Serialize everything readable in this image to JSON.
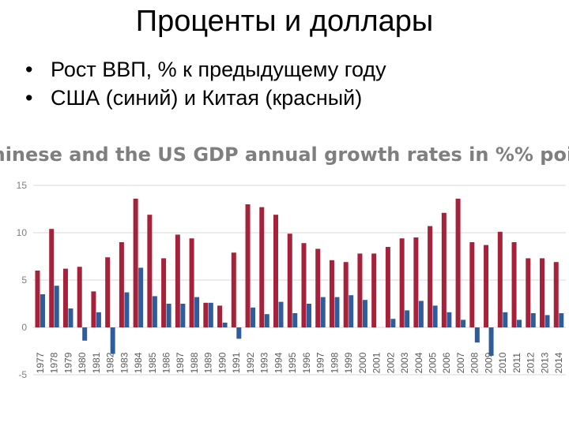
{
  "slide": {
    "title": "Проценты и доллары",
    "bullets": [
      "Рост ВВП, % к предыдущему году",
      "США (синий) и Китая (красный)"
    ]
  },
  "chart_data": {
    "type": "bar",
    "title": "Chinese and the US GDP annual growth rates in %% points",
    "xlabel": "",
    "ylabel": "",
    "ylim": [
      -5,
      15
    ],
    "yticks": [
      -5,
      0,
      5,
      10,
      15
    ],
    "grid": true,
    "legend": "none",
    "categories": [
      "1977",
      "1978",
      "1979",
      "1980",
      "1981",
      "1982",
      "1983",
      "1984",
      "1985",
      "1986",
      "1987",
      "1988",
      "1989",
      "1990",
      "1991",
      "1992",
      "1993",
      "1994",
      "1995",
      "1996",
      "1997",
      "1998",
      "1999",
      "2000",
      "2001",
      "2002",
      "2003",
      "2004",
      "2005",
      "2006",
      "2007",
      "2008",
      "2009",
      "2010",
      "2011",
      "2012",
      "2013",
      "2014"
    ],
    "series": [
      {
        "color": "#a6213a",
        "values": [
          6.0,
          10.4,
          6.2,
          6.4,
          3.8,
          7.4,
          9.0,
          13.6,
          11.9,
          7.3,
          9.8,
          9.4,
          2.6,
          2.3,
          7.9,
          13.0,
          12.7,
          11.9,
          9.9,
          8.9,
          8.3,
          7.1,
          6.9,
          7.8,
          7.8,
          8.5,
          9.4,
          9.5,
          10.7,
          12.1,
          13.6,
          9.0,
          8.7,
          10.1,
          9.0,
          7.3,
          7.3,
          6.9
        ]
      },
      {
        "color": "#2f5d9c",
        "values": [
          3.5,
          4.4,
          2.0,
          -1.4,
          1.6,
          -2.8,
          3.7,
          6.3,
          3.3,
          2.5,
          2.5,
          3.2,
          2.6,
          0.5,
          -1.2,
          2.1,
          1.4,
          2.7,
          1.5,
          2.5,
          3.2,
          3.2,
          3.4,
          2.9,
          0.0,
          0.9,
          1.8,
          2.8,
          2.3,
          1.6,
          0.8,
          -1.6,
          -3.0,
          1.6,
          0.8,
          1.5,
          1.3,
          1.5
        ]
      }
    ]
  }
}
